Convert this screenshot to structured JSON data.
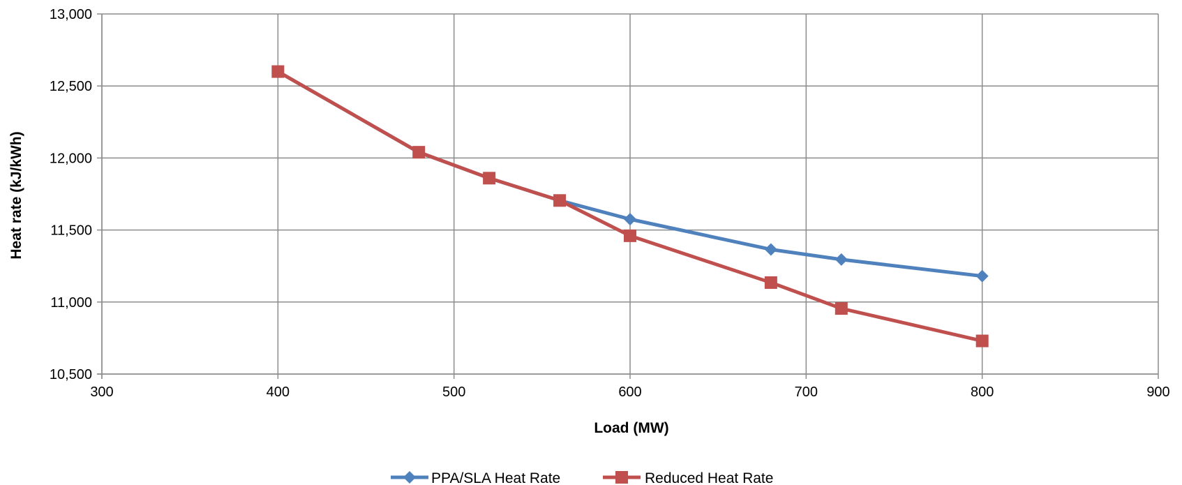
{
  "chart_data": {
    "type": "line",
    "title": "",
    "xlabel": "Load (MW)",
    "ylabel": "Heat rate (kJ/kWh)",
    "xlim": [
      300,
      900
    ],
    "ylim": [
      10500,
      13000
    ],
    "x_ticks": [
      300,
      400,
      500,
      600,
      700,
      800,
      900
    ],
    "y_ticks": [
      10500,
      11000,
      11500,
      12000,
      12500,
      13000
    ],
    "grid": true,
    "legend_position": "bottom",
    "series": [
      {
        "name": "PPA/SLA Heat Rate",
        "color": "#4F81BD",
        "marker": "diamond",
        "x": [
          400,
          480,
          520,
          560,
          600,
          680,
          720,
          800
        ],
        "y": [
          12600,
          12040,
          11860,
          11705,
          11575,
          11365,
          11295,
          11180
        ]
      },
      {
        "name": "Reduced Heat Rate",
        "color": "#C0504D",
        "marker": "square",
        "x": [
          400,
          480,
          520,
          560,
          600,
          680,
          720,
          800
        ],
        "y": [
          12600,
          12040,
          11860,
          11705,
          11460,
          11135,
          10955,
          10730
        ]
      }
    ]
  }
}
